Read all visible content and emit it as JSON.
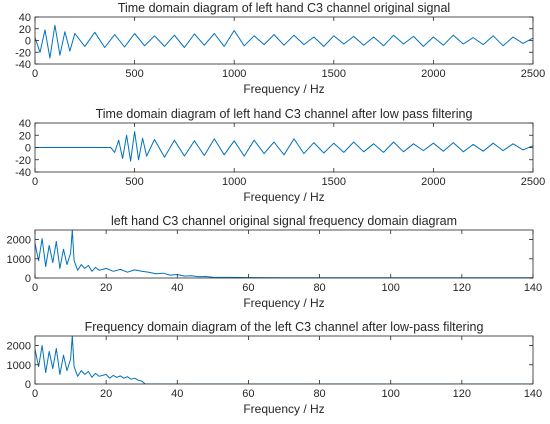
{
  "chart_data": [
    {
      "type": "line",
      "title": "Time domain diagram of left hand C3 channel original signal",
      "xlabel": "Frequency / Hz",
      "ylabel": "",
      "xlim": [
        0,
        2500
      ],
      "ylim": [
        -40,
        40
      ],
      "xticks": [
        0,
        500,
        1000,
        1500,
        2000,
        2500
      ],
      "yticks": [
        -40,
        -20,
        0,
        20,
        40
      ],
      "grid": false,
      "color": "#0072BD",
      "series": [
        {
          "x": [
            0,
            25,
            50,
            75,
            100,
            125,
            150,
            175,
            200,
            250,
            300,
            350,
            400,
            450,
            500,
            550,
            600,
            650,
            700,
            750,
            800,
            850,
            900,
            950,
            1000,
            1050,
            1100,
            1150,
            1200,
            1250,
            1300,
            1350,
            1400,
            1450,
            1500,
            1550,
            1600,
            1650,
            1700,
            1750,
            1800,
            1850,
            1900,
            1950,
            2000,
            2050,
            2100,
            2150,
            2200,
            2250,
            2300,
            2350,
            2400,
            2450,
            2500
          ],
          "y": [
            5,
            -20,
            18,
            -30,
            26,
            -25,
            15,
            -18,
            12,
            -10,
            14,
            -12,
            10,
            -11,
            12,
            -9,
            8,
            -10,
            9,
            -12,
            11,
            -8,
            12,
            -10,
            17,
            -9,
            8,
            -7,
            10,
            -8,
            9,
            -7,
            6,
            -10,
            8,
            -6,
            7,
            -8,
            6,
            -9,
            9,
            -6,
            7,
            -10,
            6,
            -8,
            9,
            -6,
            5,
            -7,
            8,
            -9,
            6,
            -5,
            4
          ]
        }
      ]
    },
    {
      "type": "line",
      "title": "Time domain diagram of left hand C3 channel after low pass filtering",
      "xlabel": "Frequency / Hz",
      "ylabel": "",
      "xlim": [
        0,
        2500
      ],
      "ylim": [
        -40,
        40
      ],
      "xticks": [
        0,
        500,
        1000,
        1500,
        2000,
        2500
      ],
      "yticks": [
        -40,
        -20,
        0,
        20,
        40
      ],
      "grid": false,
      "color": "#0072BD",
      "series": [
        {
          "x": [
            0,
            380,
            400,
            420,
            440,
            460,
            480,
            500,
            520,
            540,
            560,
            600,
            650,
            700,
            750,
            800,
            850,
            900,
            950,
            1000,
            1050,
            1100,
            1150,
            1200,
            1250,
            1300,
            1350,
            1400,
            1450,
            1500,
            1550,
            1600,
            1650,
            1700,
            1750,
            1800,
            1850,
            1900,
            1950,
            2000,
            2050,
            2100,
            2150,
            2200,
            2250,
            2300,
            2350,
            2400,
            2450,
            2500
          ],
          "y": [
            0,
            0,
            -8,
            12,
            -18,
            20,
            -22,
            26,
            -20,
            15,
            -14,
            13,
            -16,
            12,
            -14,
            11,
            -13,
            14,
            -12,
            11,
            -14,
            12,
            -10,
            9,
            -12,
            14,
            -10,
            8,
            -9,
            7,
            -8,
            9,
            -7,
            6,
            -8,
            9,
            -7,
            6,
            -5,
            7,
            -6,
            8,
            -7,
            5,
            -6,
            7,
            -5,
            6,
            -4,
            3
          ]
        }
      ]
    },
    {
      "type": "line",
      "title": "left hand C3 channel original signal frequency domain diagram",
      "xlabel": "Frequency / Hz",
      "ylabel": "",
      "xlim": [
        0,
        140
      ],
      "ylim": [
        0,
        2500
      ],
      "xticks": [
        0,
        20,
        40,
        60,
        80,
        100,
        120,
        140
      ],
      "yticks": [
        0,
        1000,
        2000
      ],
      "grid": false,
      "color": "#0072BD",
      "series": [
        {
          "x": [
            0,
            1,
            2,
            3,
            4,
            5,
            6,
            7,
            8,
            9,
            10,
            10.5,
            11,
            12,
            13,
            14,
            15,
            16,
            17,
            18,
            19,
            20,
            22,
            24,
            26,
            28,
            30,
            32,
            34,
            36,
            38,
            40,
            42,
            44,
            46,
            48,
            50,
            55,
            60,
            70,
            80,
            90,
            100,
            110,
            120,
            130,
            140
          ],
          "y": [
            1800,
            900,
            2050,
            600,
            1700,
            800,
            1900,
            500,
            1500,
            700,
            1300,
            2500,
            900,
            400,
            700,
            500,
            650,
            350,
            550,
            400,
            450,
            500,
            350,
            450,
            300,
            420,
            350,
            300,
            220,
            250,
            150,
            180,
            100,
            120,
            60,
            80,
            40,
            30,
            20,
            15,
            12,
            10,
            10,
            8,
            8,
            8,
            8
          ]
        }
      ]
    },
    {
      "type": "line",
      "title": "Frequency domain diagram of the left C3 channel after low-pass filtering",
      "xlabel": "Frequency / Hz",
      "ylabel": "",
      "xlim": [
        0,
        140
      ],
      "ylim": [
        0,
        2500
      ],
      "xticks": [
        0,
        20,
        40,
        60,
        80,
        100,
        120,
        140
      ],
      "yticks": [
        0,
        1000,
        2000
      ],
      "grid": false,
      "color": "#0072BD",
      "series": [
        {
          "x": [
            0,
            1,
            2,
            3,
            4,
            5,
            6,
            7,
            8,
            9,
            10,
            10.5,
            11,
            12,
            13,
            14,
            15,
            16,
            17,
            18,
            19,
            20,
            21,
            22,
            23,
            24,
            25,
            26,
            27,
            28,
            29,
            30,
            31,
            40,
            60,
            80,
            100,
            120,
            140
          ],
          "y": [
            1800,
            900,
            2000,
            600,
            1700,
            800,
            1850,
            500,
            1500,
            700,
            1300,
            2500,
            900,
            400,
            700,
            500,
            650,
            350,
            550,
            400,
            450,
            500,
            300,
            450,
            350,
            420,
            300,
            380,
            250,
            300,
            200,
            150,
            0,
            0,
            0,
            0,
            0,
            0,
            0
          ]
        }
      ]
    }
  ]
}
